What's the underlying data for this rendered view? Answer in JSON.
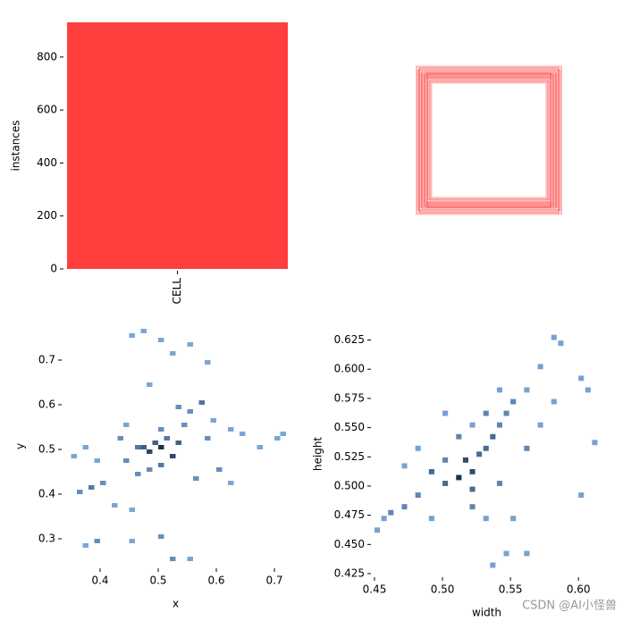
{
  "chart_data": [
    {
      "type": "bar",
      "categories": [
        "CELL"
      ],
      "values": [
        931
      ],
      "color": "#ff3838",
      "ylabel": "instances",
      "ylim": [
        0,
        931
      ],
      "yticks": [
        0,
        200,
        400,
        600,
        800
      ]
    },
    {
      "type": "boxes",
      "color": "#ff3838",
      "widths": [
        0.54,
        0.52,
        0.5,
        0.48,
        0.46,
        0.44,
        0.53,
        0.51,
        0.49,
        0.47,
        0.45,
        0.43,
        0.52,
        0.5,
        0.48,
        0.46
      ],
      "heights": [
        0.55,
        0.53,
        0.51,
        0.49,
        0.47,
        0.45,
        0.52,
        0.5,
        0.48,
        0.46,
        0.44,
        0.43,
        0.54,
        0.49,
        0.47,
        0.5
      ]
    },
    {
      "type": "histogram2d",
      "xlabel": "x",
      "ylabel": "y",
      "bin_width": [
        0.01,
        0.01
      ],
      "xlim": [
        0.34,
        0.72
      ],
      "ylim": [
        0.242,
        0.772
      ],
      "xticks": [
        0.4,
        0.5,
        0.6,
        0.7
      ],
      "yticks": [
        0.3,
        0.4,
        0.5,
        0.6,
        0.7
      ],
      "x": [
        0.46,
        0.47,
        0.48,
        0.49,
        0.5,
        0.51,
        0.52,
        0.5,
        0.46,
        0.44,
        0.54,
        0.55,
        0.57,
        0.53,
        0.59,
        0.62,
        0.64,
        0.67,
        0.7,
        0.71,
        0.38,
        0.36,
        0.4,
        0.37,
        0.35,
        0.39,
        0.42,
        0.39,
        0.37,
        0.45,
        0.5,
        0.52,
        0.55,
        0.47,
        0.45,
        0.5,
        0.52,
        0.55,
        0.58,
        0.48,
        0.6,
        0.62,
        0.56,
        0.44,
        0.43,
        0.53,
        0.5,
        0.48,
        0.45,
        0.58
      ],
      "y": [
        0.5,
        0.5,
        0.49,
        0.51,
        0.5,
        0.52,
        0.48,
        0.46,
        0.44,
        0.47,
        0.55,
        0.58,
        0.6,
        0.59,
        0.56,
        0.54,
        0.53,
        0.5,
        0.52,
        0.53,
        0.41,
        0.4,
        0.42,
        0.5,
        0.48,
        0.47,
        0.37,
        0.29,
        0.28,
        0.29,
        0.3,
        0.25,
        0.25,
        0.76,
        0.75,
        0.74,
        0.71,
        0.73,
        0.69,
        0.64,
        0.45,
        0.42,
        0.43,
        0.55,
        0.52,
        0.51,
        0.54,
        0.45,
        0.36,
        0.52
      ],
      "values": [
        3,
        4,
        5,
        4,
        6,
        3,
        5,
        3,
        2,
        2,
        2,
        2,
        3,
        2,
        1,
        1,
        1,
        1,
        1,
        1,
        3,
        2,
        2,
        1,
        1,
        1,
        1,
        2,
        1,
        1,
        2,
        2,
        1,
        1,
        1,
        1,
        1,
        1,
        1,
        1,
        2,
        1,
        2,
        1,
        2,
        4,
        2,
        2,
        1,
        2
      ]
    },
    {
      "type": "histogram2d",
      "xlabel": "width",
      "ylabel": "height",
      "bin_width": [
        0.004,
        0.0045
      ],
      "xlim": [
        0.45,
        0.615
      ],
      "ylim": [
        0.425,
        0.63
      ],
      "xticks": [
        0.45,
        {
          "value": 0.5,
          "label": "0.50"
        },
        0.55,
        {
          "value": 0.6,
          "label": "0.60"
        }
      ],
      "yticks": [
        0.425,
        {
          "value": 0.45,
          "label": "0.450"
        },
        0.475,
        {
          "value": 0.5,
          "label": "0.500"
        },
        0.525,
        {
          "value": 0.55,
          "label": "0.550"
        },
        0.575,
        {
          "value": 0.6,
          "label": "0.600"
        },
        0.625
      ],
      "x": [
        0.51,
        0.52,
        0.5,
        0.515,
        0.525,
        0.53,
        0.535,
        0.54,
        0.545,
        0.55,
        0.56,
        0.57,
        0.58,
        0.585,
        0.6,
        0.605,
        0.61,
        0.6,
        0.48,
        0.47,
        0.46,
        0.455,
        0.45,
        0.49,
        0.5,
        0.52,
        0.54,
        0.55,
        0.56,
        0.545,
        0.535,
        0.49,
        0.51,
        0.52,
        0.53,
        0.5,
        0.48,
        0.47,
        0.56,
        0.57,
        0.58,
        0.53,
        0.52,
        0.54
      ],
      "y": [
        0.505,
        0.51,
        0.5,
        0.52,
        0.525,
        0.53,
        0.54,
        0.55,
        0.56,
        0.57,
        0.58,
        0.6,
        0.625,
        0.62,
        0.59,
        0.58,
        0.535,
        0.49,
        0.49,
        0.48,
        0.475,
        0.47,
        0.46,
        0.51,
        0.52,
        0.495,
        0.5,
        0.47,
        0.44,
        0.44,
        0.43,
        0.47,
        0.54,
        0.55,
        0.56,
        0.56,
        0.53,
        0.515,
        0.53,
        0.55,
        0.57,
        0.47,
        0.48,
        0.58
      ],
      "values": [
        5,
        4,
        3,
        4,
        3,
        3,
        3,
        2,
        2,
        2,
        1,
        1,
        1,
        1,
        1,
        1,
        1,
        1,
        2,
        2,
        2,
        1,
        1,
        3,
        2,
        3,
        2,
        1,
        1,
        1,
        1,
        1,
        2,
        1,
        2,
        1,
        1,
        1,
        2,
        1,
        1,
        1,
        2,
        1
      ]
    }
  ],
  "watermark": "CSDN @AI小怪兽"
}
